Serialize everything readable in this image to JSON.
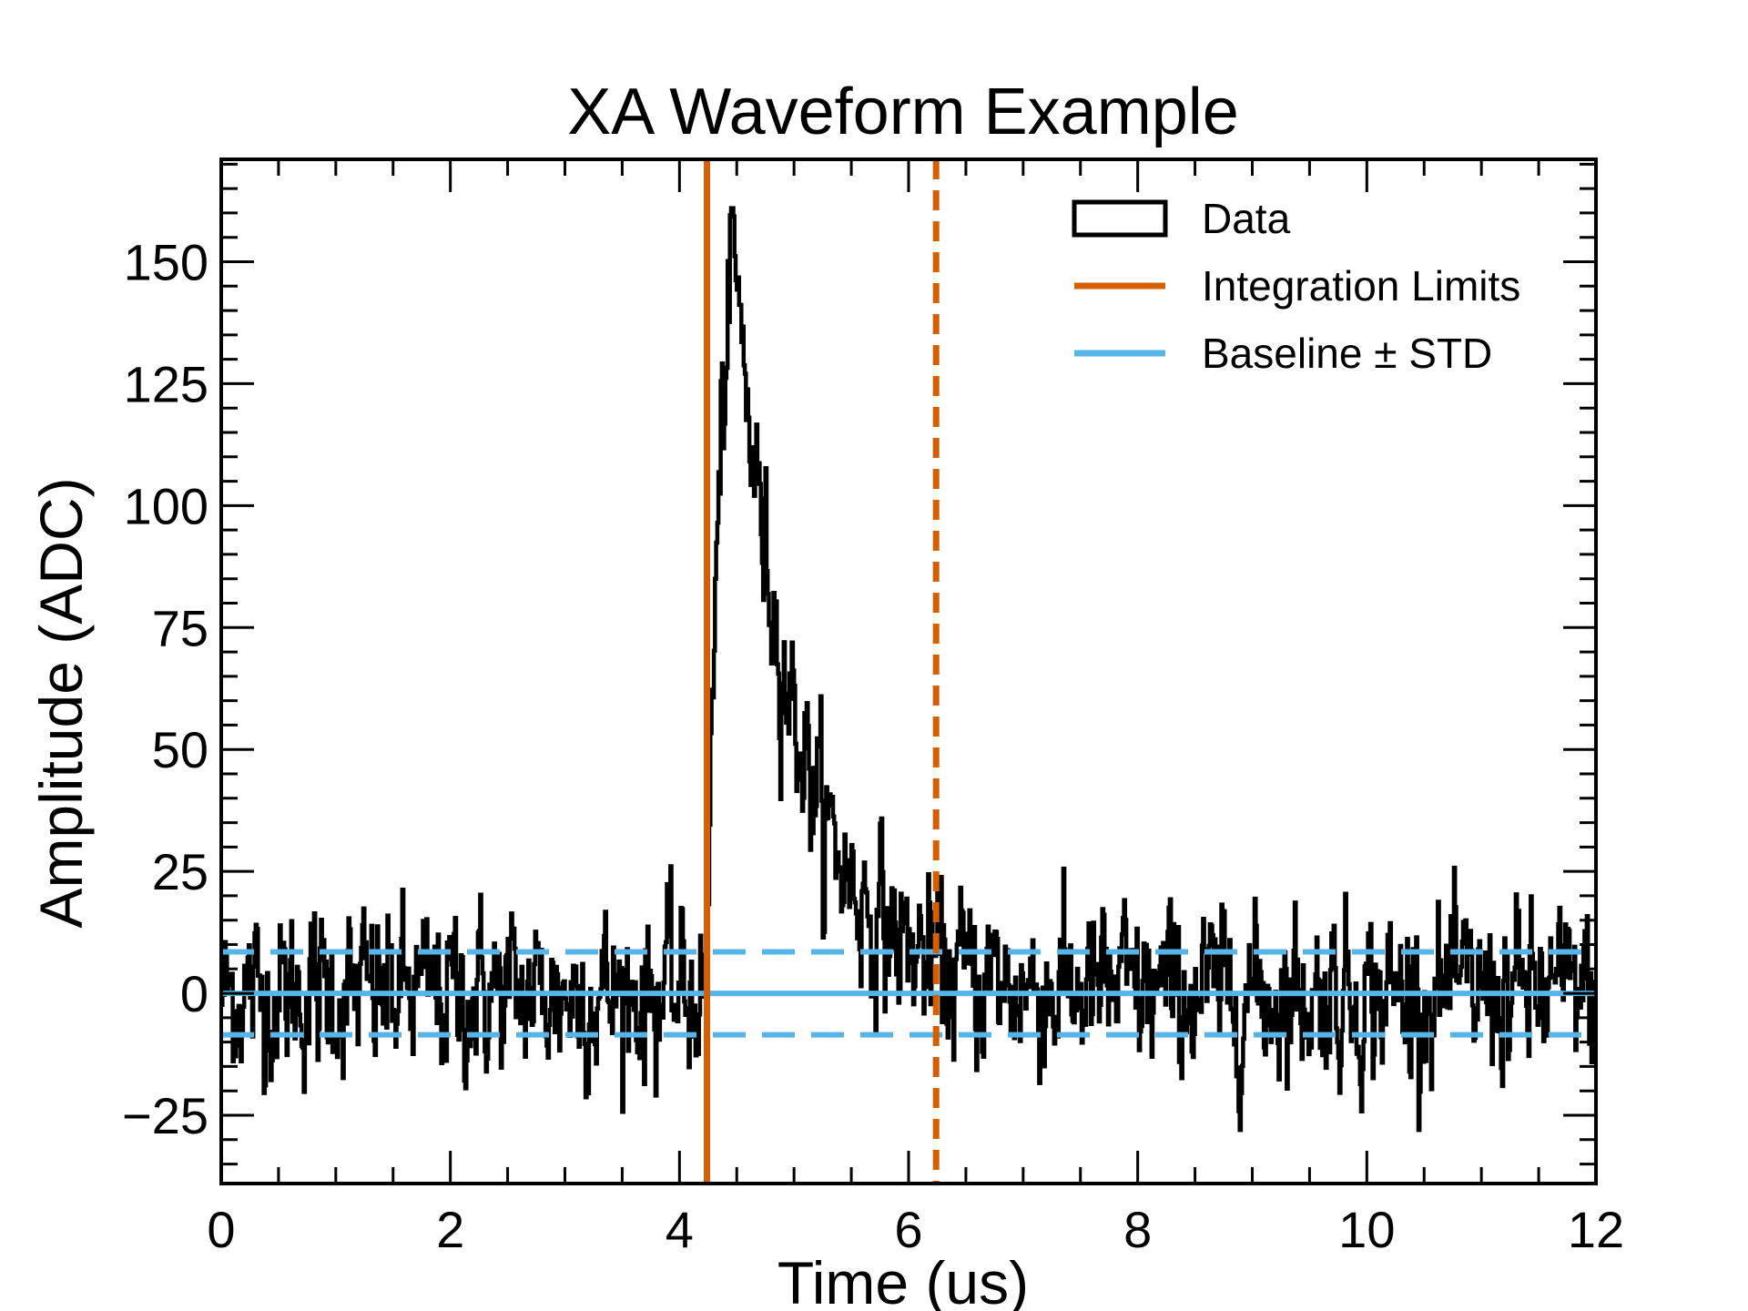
{
  "chart_data": {
    "type": "line",
    "title": "XA Waveform Example",
    "xlabel": "Time (us)",
    "ylabel": "Amplitude (ADC)",
    "xlim": [
      0,
      12
    ],
    "ylim": [
      -39,
      171
    ],
    "x_ticks": [
      0,
      2,
      4,
      6,
      8,
      10,
      12
    ],
    "x_tick_labels": [
      "0",
      "2",
      "4",
      "6",
      "8",
      "10",
      "12"
    ],
    "y_ticks": [
      -25,
      0,
      25,
      50,
      75,
      100,
      125,
      150
    ],
    "y_tick_labels": [
      "−25",
      "0",
      "25",
      "50",
      "75",
      "100",
      "125",
      "150"
    ],
    "x_minor_step": 0.5,
    "y_minor_step": 5,
    "grid": false,
    "legend_position": "top-right",
    "legend": [
      {
        "label": "Data",
        "style": "box",
        "color": "#000000"
      },
      {
        "label": "Integration Limits",
        "style": "line",
        "color": "#d55e00"
      },
      {
        "label": "Baseline ± STD",
        "style": "line",
        "color": "#56b4e9"
      }
    ],
    "integration_limits": {
      "start": 4.24,
      "end": 6.24,
      "color": "#d55e00"
    },
    "baseline": {
      "value": 0,
      "std": 8.5,
      "color": "#56b4e9"
    },
    "series": [
      {
        "name": "Data",
        "color": "#000000",
        "waveform": {
          "x_start": 0,
          "x_end": 12,
          "samples": 1200,
          "pulse_onset": 4.24,
          "peak_time": 4.45,
          "peak_amplitude": 155,
          "decay_time_us": 0.55,
          "noise_std": 8.5,
          "max_value": 161,
          "min_value": -28
        }
      }
    ]
  }
}
